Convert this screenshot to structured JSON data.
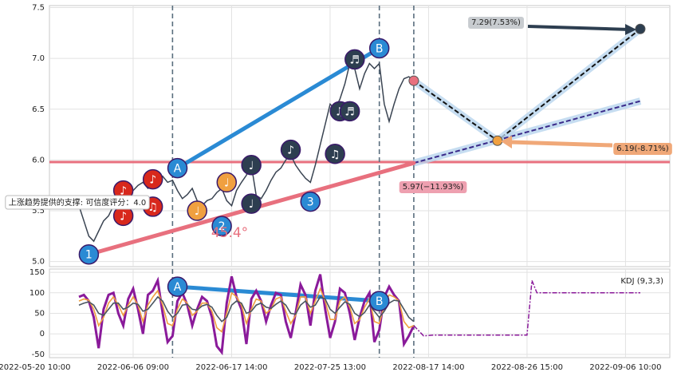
{
  "chart_data": [
    {
      "type": "line",
      "x": [
        9,
        10,
        11,
        12,
        13,
        14,
        15,
        16,
        17,
        18,
        19,
        20,
        21,
        22,
        23,
        24,
        25,
        26,
        27,
        28,
        29,
        30,
        31,
        32,
        33,
        34,
        35,
        36,
        37,
        38,
        39,
        40,
        41,
        42,
        43,
        44,
        45,
        46,
        47,
        48,
        49,
        50,
        51,
        52,
        53,
        54,
        55,
        56,
        57,
        58,
        59,
        60,
        61,
        62,
        63,
        64,
        65,
        66,
        67,
        68,
        69,
        70,
        71,
        72,
        73,
        74,
        75,
        76,
        77
      ],
      "values": [
        5.55,
        5.4,
        5.25,
        5.2,
        5.3,
        5.4,
        5.45,
        5.55,
        5.62,
        5.7,
        5.65,
        5.7,
        5.75,
        5.78,
        5.72,
        5.76,
        5.8,
        5.84,
        5.78,
        5.8,
        5.7,
        5.62,
        5.66,
        5.72,
        5.6,
        5.55,
        5.6,
        5.62,
        5.68,
        5.72,
        5.6,
        5.55,
        5.7,
        5.78,
        5.85,
        5.95,
        5.65,
        5.62,
        5.7,
        5.8,
        5.88,
        5.92,
        6.0,
        6.05,
        5.95,
        5.88,
        5.82,
        5.78,
        5.95,
        6.15,
        6.35,
        6.55,
        6.5,
        6.6,
        6.75,
        6.95,
        6.9,
        6.7,
        6.85,
        6.95,
        6.9,
        6.95,
        6.55,
        6.38,
        6.55,
        6.7,
        6.8,
        6.82,
        6.78
      ],
      "color": "#3a4452",
      "xlim": [
        3,
        129
      ],
      "ylim": [
        4.95,
        7.52
      ],
      "yticks": [
        {
          "value": 5,
          "label": "5.0"
        },
        5.5,
        {
          "value": 6,
          "label": "6.0"
        },
        6.5,
        {
          "value": 7,
          "label": "7.0"
        },
        7.5
      ],
      "grid": true,
      "vlines": [
        28,
        70,
        77
      ],
      "hlines": [
        5.98
      ],
      "trend_lines": [
        {
          "x": [
            11,
            77
          ],
          "y": [
            5.07,
            5.97
          ],
          "color": "#e8707e"
        },
        {
          "x": [
            29,
            70
          ],
          "y": [
            5.92,
            7.1
          ],
          "color": "#2a8ad4"
        }
      ],
      "projections": [
        {
          "x": [
            77,
            94,
            123
          ],
          "y": [
            6.78,
            6.19,
            7.29
          ],
          "color": "#111111"
        },
        {
          "x": [
            77,
            123
          ],
          "y": [
            5.97,
            6.58
          ],
          "color": "#3a2a8a"
        }
      ],
      "annotations": [
        {
          "label": "1",
          "x": 11,
          "y": 5.07,
          "color": "#2a8ad4"
        },
        {
          "label": "2",
          "x": 38,
          "y": 5.35,
          "color": "#2a8ad4"
        },
        {
          "label": "3",
          "x": 56,
          "y": 5.59,
          "color": "#2a8ad4"
        },
        {
          "label": "A",
          "x": 29,
          "y": 5.92,
          "color": "#2a8ad4"
        },
        {
          "label": "B",
          "x": 70,
          "y": 7.1,
          "color": "#2a8ad4"
        },
        {
          "label": "♪",
          "x": 18,
          "y": 5.7,
          "color": "#d8281c"
        },
        {
          "label": "♪",
          "x": 18,
          "y": 5.45,
          "color": "#d8281c"
        },
        {
          "label": "♪",
          "x": 24,
          "y": 5.81,
          "color": "#d8281c"
        },
        {
          "label": "♫",
          "x": 24,
          "y": 5.54,
          "color": "#d8281c"
        },
        {
          "label": "♩",
          "x": 33,
          "y": 5.5,
          "color": "#f0a040"
        },
        {
          "label": "♩",
          "x": 39,
          "y": 5.78,
          "color": "#f0a040"
        },
        {
          "label": "♩",
          "x": 44,
          "y": 5.95,
          "color": "#2d3e50"
        },
        {
          "label": "♩",
          "x": 44,
          "y": 5.57,
          "color": "#2d3e50"
        },
        {
          "label": "♪",
          "x": 52,
          "y": 6.1,
          "color": "#2d3e50"
        },
        {
          "label": "♫",
          "x": 61,
          "y": 6.06,
          "color": "#2d3e50"
        },
        {
          "label": "♫",
          "x": 62,
          "y": 6.48,
          "color": "#2d3e50"
        },
        {
          "label": "♬",
          "x": 64,
          "y": 6.48,
          "color": "#2d3e50"
        },
        {
          "label": "♬",
          "x": 65,
          "y": 6.99,
          "color": "#2d3e50"
        }
      ],
      "labels": [
        "7.29(7.53%)",
        "6.19(-8.71%)",
        "5.97(−11.93%)",
        "上涨趋势提供的支撑: 可信度评分：4.0",
        "45.4°"
      ]
    },
    {
      "type": "line",
      "x": [
        9,
        10,
        11,
        12,
        13,
        14,
        15,
        16,
        17,
        18,
        19,
        20,
        21,
        22,
        23,
        24,
        25,
        26,
        27,
        28,
        29,
        30,
        31,
        32,
        33,
        34,
        35,
        36,
        37,
        38,
        39,
        40,
        41,
        42,
        43,
        44,
        45,
        46,
        47,
        48,
        49,
        50,
        51,
        52,
        53,
        54,
        55,
        56,
        57,
        58,
        59,
        60,
        61,
        62,
        63,
        64,
        65,
        66,
        67,
        68,
        69,
        70,
        71,
        72,
        73,
        74,
        75,
        76,
        77
      ],
      "series": [
        {
          "color": "#8a1a9a",
          "values": [
            90,
            95,
            80,
            40,
            -35,
            60,
            95,
            100,
            50,
            20,
            85,
            110,
            60,
            0,
            95,
            105,
            130,
            50,
            -20,
            -5,
            80,
            100,
            70,
            20,
            60,
            90,
            80,
            40,
            -30,
            -45,
            75,
            140,
            90,
            60,
            -25,
            85,
            105,
            80,
            30,
            70,
            100,
            95,
            30,
            -10,
            50,
            120,
            95,
            20,
            105,
            145,
            60,
            -10,
            30,
            110,
            100,
            50,
            -15,
            40,
            80,
            100,
            -20,
            10,
            90,
            115,
            95,
            80,
            -25,
            -5,
            20
          ]
        },
        {
          "color": "#f0a040",
          "values": [
            80,
            85,
            82,
            60,
            20,
            40,
            75,
            90,
            70,
            45,
            70,
            90,
            70,
            30,
            70,
            90,
            105,
            70,
            25,
            20,
            60,
            85,
            75,
            45,
            55,
            75,
            75,
            55,
            15,
            5,
            50,
            100,
            90,
            70,
            25,
            60,
            85,
            80,
            50,
            60,
            85,
            90,
            55,
            25,
            45,
            90,
            90,
            50,
            80,
            110,
            80,
            35,
            35,
            80,
            90,
            65,
            25,
            35,
            65,
            85,
            30,
            25,
            70,
            95,
            90,
            80,
            30,
            15,
            20
          ]
        },
        {
          "color": "#4a5560",
          "values": [
            70,
            75,
            78,
            70,
            50,
            45,
            60,
            75,
            75,
            60,
            65,
            75,
            72,
            55,
            60,
            75,
            90,
            80,
            55,
            40,
            50,
            70,
            72,
            60,
            58,
            68,
            72,
            65,
            45,
            30,
            40,
            70,
            80,
            75,
            50,
            55,
            70,
            75,
            65,
            62,
            72,
            80,
            70,
            50,
            48,
            70,
            80,
            65,
            70,
            90,
            85,
            60,
            50,
            65,
            78,
            72,
            50,
            42,
            52,
            70,
            55,
            40,
            55,
            75,
            82,
            80,
            60,
            40,
            30
          ]
        }
      ],
      "projection": {
        "x": [
          77,
          79,
          81,
          97,
          100,
          101,
          102,
          123
        ],
        "values": [
          20,
          -5,
          -3,
          -3,
          -3,
          130,
          100,
          100
        ],
        "color": "#8a1a9a"
      },
      "xlim": [
        3,
        129
      ],
      "ylim": [
        -58,
        158
      ],
      "yticks": [
        -50,
        0,
        50,
        100,
        150
      ],
      "xticks": [
        {
          "value": 0,
          "label": "2022-05-20 10:00"
        },
        {
          "value": 20,
          "label": "2022-06-06 09:00"
        },
        {
          "value": 40,
          "label": "2022-06-17 14:00"
        },
        {
          "value": 60,
          "label": "2022-07-25 13:00"
        },
        {
          "value": 80,
          "label": "2022-08-17 14:00"
        },
        {
          "value": 100,
          "label": "2022-08-26 15:00"
        },
        {
          "value": 120,
          "label": "2022-09-06 10:00"
        }
      ],
      "grid": true,
      "vlines": [
        28,
        70,
        77
      ],
      "trend_lines": [
        {
          "x": [
            29,
            70
          ],
          "y": [
            115,
            80
          ],
          "color": "#2a8ad4"
        }
      ],
      "annotations": [
        {
          "label": "A",
          "x": 29,
          "y": 115,
          "color": "#2a8ad4"
        },
        {
          "label": "B",
          "x": 70,
          "y": 80,
          "color": "#2a8ad4"
        }
      ],
      "label": "KDJ (9,3,3)"
    }
  ]
}
